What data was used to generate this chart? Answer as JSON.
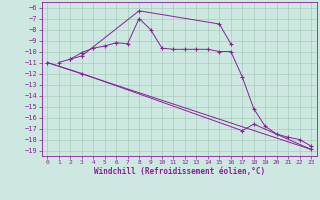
{
  "bg_color": "#cce8e0",
  "grid_color": "#aaccbb",
  "line_color": "#882299",
  "xlabel": "Windchill (Refroidissement éolien,°C)",
  "xlim": [
    -0.5,
    23.5
  ],
  "ylim": [
    -19.5,
    -5.5
  ],
  "xticks": [
    0,
    1,
    2,
    3,
    4,
    5,
    6,
    7,
    8,
    9,
    10,
    11,
    12,
    13,
    14,
    15,
    16,
    17,
    18,
    19,
    20,
    21,
    22,
    23
  ],
  "yticks": [
    -6,
    -7,
    -8,
    -9,
    -10,
    -11,
    -12,
    -13,
    -14,
    -15,
    -16,
    -17,
    -18,
    -19
  ],
  "series": [
    {
      "x": [
        1,
        2,
        3,
        4,
        5,
        6,
        7,
        8,
        9,
        10,
        11,
        12,
        13,
        14,
        15,
        16,
        17,
        18,
        19,
        20,
        21,
        22,
        23
      ],
      "y": [
        -11.0,
        -10.7,
        -10.1,
        -9.7,
        -9.5,
        -9.2,
        -9.3,
        -7.0,
        -8.0,
        -9.7,
        -9.8,
        -9.8,
        -9.8,
        -9.8,
        -10.0,
        -10.0,
        -12.3,
        -15.2,
        -16.8,
        -17.5,
        -17.8,
        -18.0,
        -18.6
      ],
      "marker": true
    },
    {
      "x": [
        2,
        3,
        8,
        15,
        16
      ],
      "y": [
        -10.7,
        -10.4,
        -6.3,
        -7.5,
        -9.3
      ],
      "marker": true
    },
    {
      "x": [
        0,
        3,
        17,
        18,
        23
      ],
      "y": [
        -11.0,
        -12.0,
        -17.2,
        -16.6,
        -18.9
      ],
      "marker": true
    },
    {
      "x": [
        0,
        23
      ],
      "y": [
        -11.0,
        -18.9
      ],
      "marker": false
    }
  ]
}
